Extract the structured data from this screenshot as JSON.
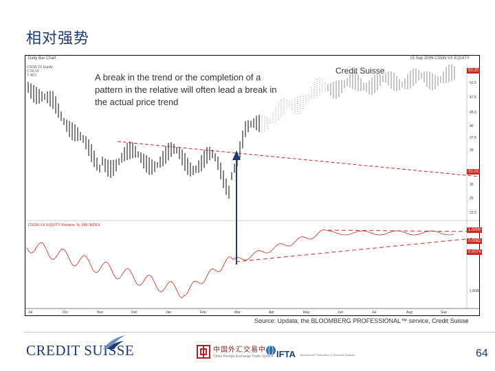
{
  "slide": {
    "title": "相对强势",
    "page_number": "64",
    "source": "Source: Updata, the BLOOMBERG PROFESSIONAL™ service, Credit Suisse"
  },
  "chart": {
    "header_left": "Daily Bar Chart",
    "header_right": "15 Sep 2009  CSGN VX EQUITY",
    "legend_lines": [
      "CSGN VX Equity",
      "C 50.20",
      "T 48.5"
    ],
    "callout_text": "A break in the trend or the completion of a pattern in the relative will often lead a break in the actual price trend",
    "credit_suisse_label": "Credit Suisse",
    "lower_panel_title": "CSGN VX EQUITY Relative To SMI INDEX",
    "upper_axis_ticks": [
      "52.5",
      "47.5",
      "45.0",
      "40",
      "37.5",
      "35",
      "30",
      "25",
      "22.5"
    ],
    "upper_axis_tags": [
      "50.20",
      "33.02"
    ],
    "lower_axis_tags": [
      "1.0000",
      "0.0082",
      "0.0074"
    ],
    "lower_axis_ticks": [
      "1.0000"
    ],
    "x_ticks": [
      "Jul",
      "Oct",
      "Nov",
      "Dec",
      "Jan",
      "Feb",
      "Mar",
      "Apr",
      "May",
      "Jun",
      "Jul",
      "Aug",
      "Sep"
    ],
    "colors": {
      "price": "#000000",
      "relative": "#c8281e",
      "trendline": "#c8281e",
      "arrow": "#1e3b6e"
    }
  },
  "footer": {
    "brand": "CREDIT SUISSE",
    "partner_1": "中国外汇交易中心",
    "partner_1_sub": "China Foreign Exchange Trade System",
    "partner_2": "IFTA",
    "partner_2_sub": "International Federation of Technical Analysts"
  }
}
